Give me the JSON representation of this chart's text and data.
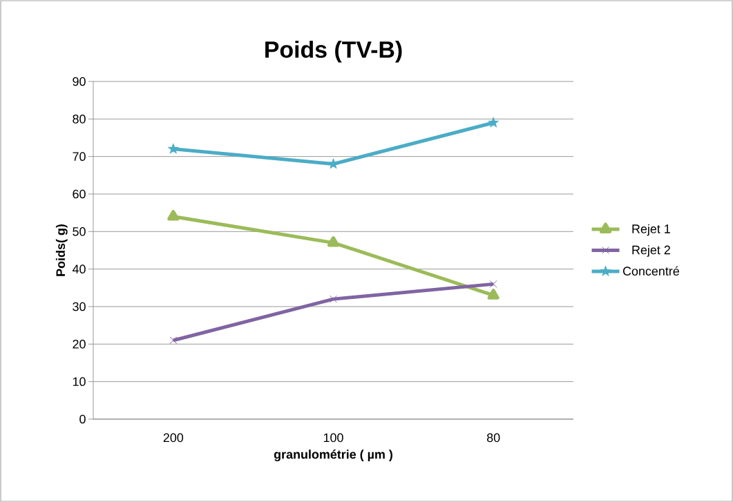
{
  "chart_data": {
    "type": "line",
    "title": "Poids (TV-B)",
    "xlabel": "granulométrie ( µm )",
    "ylabel": "Poids( g)",
    "categories": [
      "200",
      "100",
      "80"
    ],
    "series": [
      {
        "name": "Rejet 1",
        "color": "#9bbb59",
        "marker": "triangle",
        "values": [
          54,
          47,
          33
        ]
      },
      {
        "name": "Rejet 2",
        "color": "#8064a2",
        "marker": "cross",
        "values": [
          21,
          32,
          36
        ]
      },
      {
        "name": "Concentré",
        "color": "#4bacc6",
        "marker": "star",
        "values": [
          72,
          68,
          79
        ]
      }
    ],
    "ylim": [
      0,
      90
    ],
    "yticks": [
      0,
      10,
      20,
      30,
      40,
      50,
      60,
      70,
      80,
      90
    ],
    "grid": "y",
    "legend": "right"
  }
}
